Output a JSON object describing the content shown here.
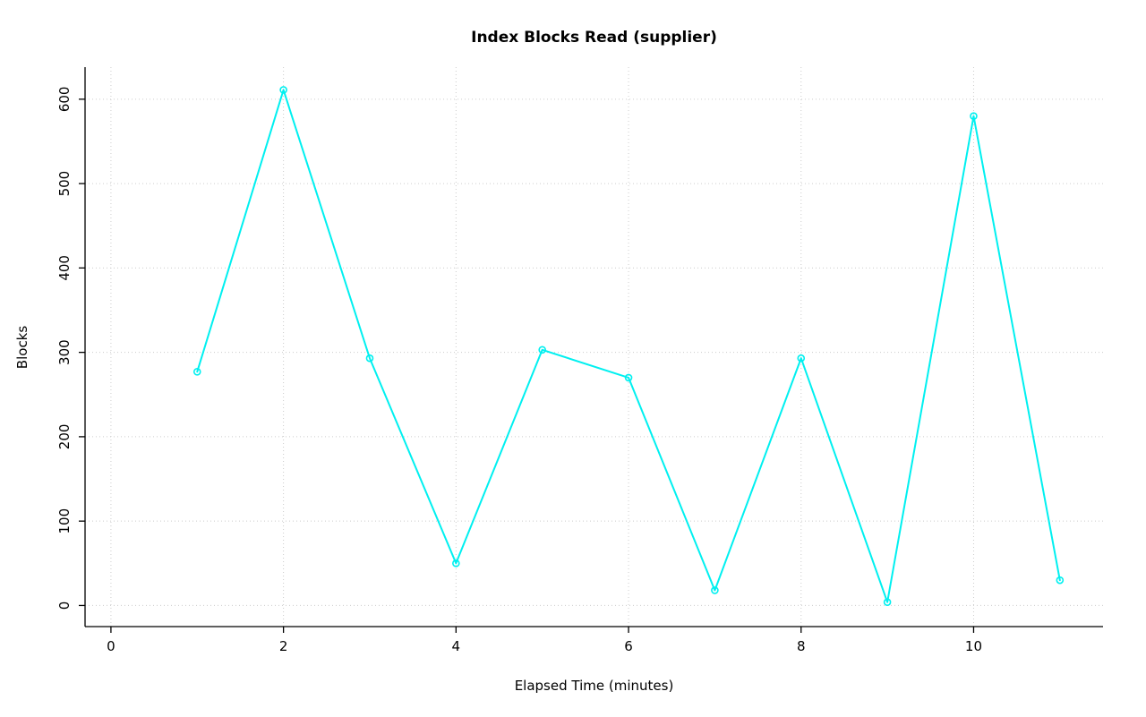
{
  "page": {
    "background": "#ffffff"
  },
  "chart_data": {
    "type": "line",
    "title": "Index Blocks Read (supplier)",
    "xlabel": "Elapsed Time (minutes)",
    "ylabel": "Blocks",
    "x": [
      1,
      2,
      3,
      4,
      5,
      6,
      7,
      8,
      9,
      10,
      11
    ],
    "values": [
      277,
      611,
      293,
      50,
      303,
      270,
      18,
      293,
      4,
      580,
      30
    ],
    "series_name": "Index Blocks Read",
    "xlim": [
      -0.3,
      11.5
    ],
    "ylim": [
      -25,
      638
    ],
    "x_ticks": [
      0,
      2,
      4,
      6,
      8,
      10
    ],
    "y_ticks": [
      0,
      100,
      200,
      300,
      400,
      500,
      600
    ],
    "grid": true,
    "legend": "none",
    "line_color": "#00f0f0",
    "marker": "circle-open",
    "grid_color": "#cccccc",
    "axis_color": "#000000",
    "text_color": "#000000"
  }
}
